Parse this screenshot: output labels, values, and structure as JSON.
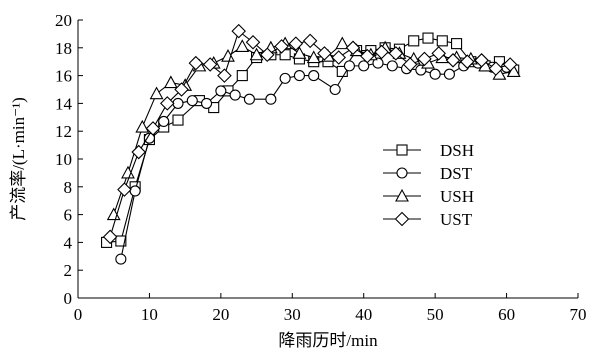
{
  "chart_data": {
    "type": "line",
    "xlabel": "降雨历时/min",
    "ylabel": "产流率/(L·min⁻¹)",
    "xlim": [
      0,
      70
    ],
    "ylim": [
      0,
      20
    ],
    "xticks": [
      "0",
      "10",
      "20",
      "30",
      "40",
      "50",
      "60",
      "70"
    ],
    "yticks": [
      "0",
      "2",
      "4",
      "6",
      "8",
      "10",
      "12",
      "14",
      "16",
      "18",
      "20"
    ],
    "grid": false,
    "legend_position": "right-center",
    "series": [
      {
        "name": "DSH",
        "marker": "square",
        "x": [
          4,
          6,
          8,
          10,
          12,
          14,
          17,
          19,
          21,
          23,
          25,
          27,
          29,
          31,
          33,
          35,
          37,
          39,
          41,
          43,
          45,
          47,
          49,
          51,
          53,
          55,
          57,
          59,
          61
        ],
        "y": [
          4.0,
          4.1,
          8.0,
          11.4,
          12.3,
          12.8,
          14.2,
          13.7,
          14.9,
          16.0,
          17.3,
          17.5,
          17.5,
          17.2,
          17.0,
          17.0,
          16.3,
          17.8,
          17.8,
          18.0,
          17.9,
          18.5,
          18.7,
          18.5,
          18.3,
          17.0,
          16.7,
          17.0,
          16.4
        ]
      },
      {
        "name": "DST",
        "marker": "circle",
        "x": [
          6,
          8,
          10,
          12,
          14,
          16,
          18,
          20,
          22,
          24,
          27,
          29,
          31,
          33,
          36,
          38,
          40,
          42,
          44,
          46,
          48,
          50,
          52,
          54,
          56,
          58,
          60
        ],
        "y": [
          2.8,
          7.7,
          11.5,
          12.7,
          14.0,
          14.2,
          14.0,
          14.9,
          14.6,
          14.3,
          14.3,
          15.8,
          16.0,
          16.0,
          15.0,
          16.7,
          16.7,
          16.9,
          16.7,
          16.5,
          16.4,
          16.1,
          16.1,
          16.7,
          16.9,
          16.6,
          16.6
        ]
      },
      {
        "name": "USH",
        "marker": "triangle",
        "x": [
          5,
          7,
          9,
          11,
          13,
          15,
          17,
          19,
          21,
          23,
          25,
          27,
          29,
          31,
          33,
          35,
          37,
          39,
          41,
          43,
          45,
          47,
          49,
          51,
          53,
          55,
          57,
          59,
          61
        ],
        "y": [
          6.0,
          9.0,
          12.3,
          14.7,
          15.5,
          15.3,
          16.7,
          16.9,
          17.4,
          18.1,
          17.5,
          18.0,
          18.3,
          17.6,
          17.3,
          17.4,
          18.3,
          17.8,
          17.5,
          18.0,
          17.6,
          17.2,
          16.9,
          17.3,
          17.3,
          17.2,
          16.7,
          16.1,
          16.3
        ]
      },
      {
        "name": "UST",
        "marker": "diamond",
        "x": [
          4.5,
          6.5,
          8.5,
          10.5,
          12.5,
          14.5,
          16.5,
          18.5,
          20.5,
          22.5,
          24.5,
          26.5,
          28.5,
          30.5,
          32.5,
          34.5,
          36.5,
          38.5,
          40.5,
          42.5,
          44.5,
          46.5,
          48.5,
          50.5,
          52.5,
          54.5,
          56.5,
          58.5,
          60.5
        ],
        "y": [
          4.4,
          7.8,
          10.5,
          12.2,
          14.0,
          15.0,
          16.9,
          16.8,
          16.0,
          19.2,
          18.4,
          17.5,
          18.1,
          18.3,
          18.5,
          17.6,
          17.3,
          18.0,
          17.4,
          17.7,
          17.6,
          16.8,
          17.2,
          17.6,
          17.1,
          17.0,
          17.1,
          16.5,
          16.8
        ]
      }
    ]
  }
}
